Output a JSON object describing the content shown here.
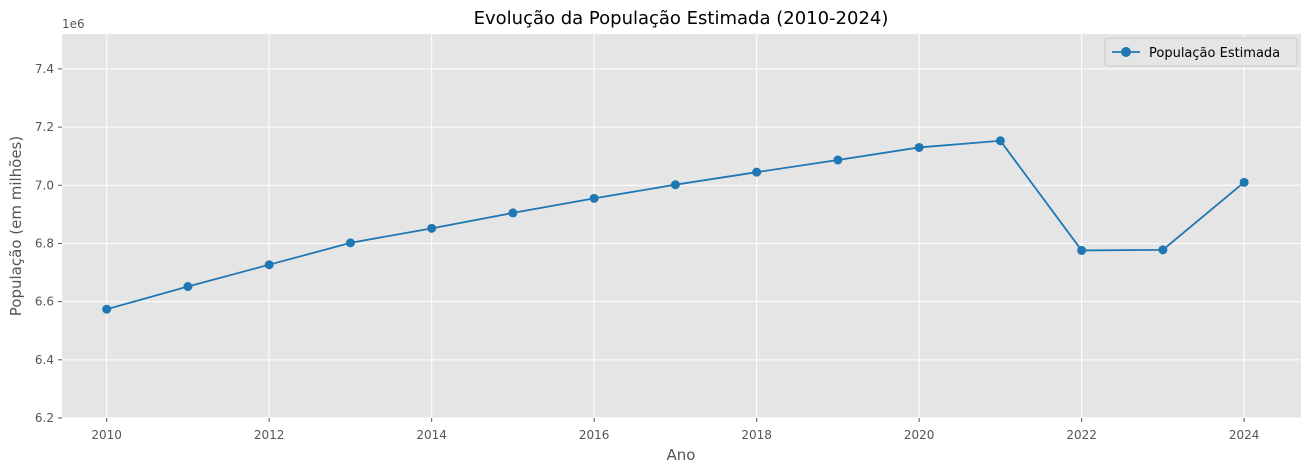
{
  "chart_data": {
    "type": "line",
    "title": "Evolução da População Estimada (2010-2024)",
    "xlabel": "Ano",
    "ylabel": "População (em milhões)",
    "y_offset_label": "1e6",
    "x": [
      2010,
      2011,
      2012,
      2013,
      2014,
      2015,
      2016,
      2017,
      2018,
      2019,
      2020,
      2021,
      2022,
      2023,
      2024
    ],
    "series": [
      {
        "name": "População Estimada",
        "color": "#1f77b4",
        "marker": "circle",
        "values": [
          6574000,
          6652000,
          6727000,
          6802000,
          6852000,
          6905000,
          6955000,
          7002000,
          7045000,
          7087000,
          7130000,
          7153000,
          6776000,
          6778000,
          7010000
        ]
      }
    ],
    "xlim": [
      2009.45,
      2024.7
    ],
    "ylim": [
      6200000,
      7520000
    ],
    "x_ticks": [
      2010,
      2012,
      2014,
      2016,
      2018,
      2020,
      2022,
      2024
    ],
    "x_tick_labels": [
      "2010",
      "2012",
      "2014",
      "2016",
      "2018",
      "2020",
      "2022",
      "2024"
    ],
    "y_ticks": [
      6200000,
      6400000,
      6600000,
      6800000,
      7000000,
      7200000,
      7400000
    ],
    "y_tick_labels": [
      "6.2",
      "6.4",
      "6.6",
      "6.8",
      "7.0",
      "7.2",
      "7.4"
    ],
    "grid": true,
    "legend_position": "top-right",
    "background_color": "#e5e5e5",
    "grid_color": "#ffffff"
  }
}
